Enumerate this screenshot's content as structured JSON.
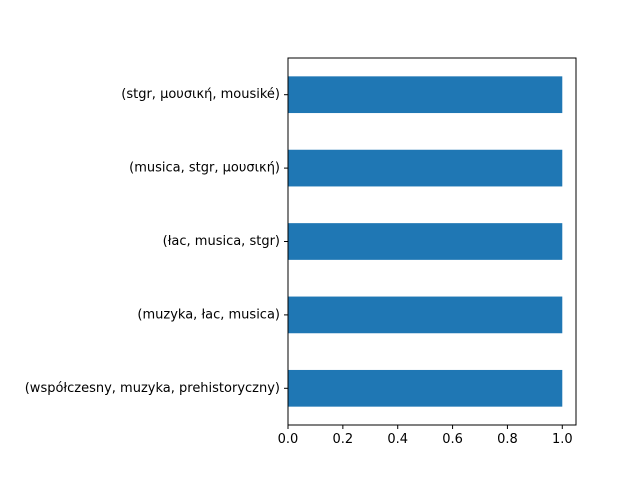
{
  "chart_data": {
    "type": "bar",
    "orientation": "horizontal",
    "categories": [
      "(współczesny, muzyka, prehistoryczny)",
      "(muzyka, łac, musica)",
      "(łac, musica, stgr)",
      "(musica, stgr, μουσική)",
      "(stgr, μουσική, mousiké)"
    ],
    "values": [
      1,
      1,
      1,
      1,
      1
    ],
    "xlim": [
      0,
      1.05
    ],
    "xticks": [
      0.0,
      0.2,
      0.4,
      0.6,
      0.8,
      1.0
    ],
    "xtick_labels": [
      "0.0",
      "0.2",
      "0.4",
      "0.6",
      "0.8",
      "1.0"
    ],
    "title": "",
    "xlabel": "",
    "ylabel": "",
    "grid": false,
    "legend": "none",
    "bar_color": "#1f77b4"
  }
}
